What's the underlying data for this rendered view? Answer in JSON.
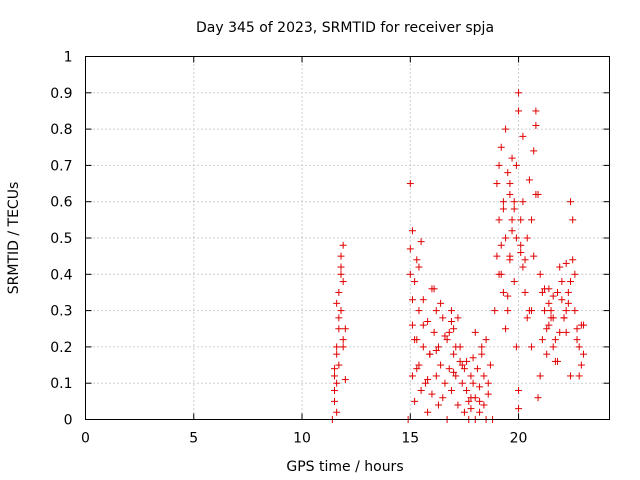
{
  "chart_data": {
    "type": "scatter",
    "title": "Day 345 of 2023, SRMTID for receiver spja",
    "xlabel": "GPS time / hours",
    "ylabel": "SRMTID / TECUs",
    "xlim": [
      0,
      24.2
    ],
    "ylim": [
      0,
      1
    ],
    "xticks": [
      0,
      5,
      10,
      15,
      20
    ],
    "xtick_labels": [
      "0",
      "5",
      "10",
      "15",
      "20"
    ],
    "yticks": [
      0,
      0.1,
      0.2,
      0.3,
      0.4,
      0.5,
      0.6,
      0.7,
      0.8,
      0.9,
      1
    ],
    "ytick_labels": [
      "0",
      "0.1",
      "0.2",
      "0.3",
      "0.4",
      "0.5",
      "0.6",
      "0.7",
      "0.8",
      "0.9",
      "1"
    ],
    "grid": true,
    "marker": "+",
    "color": "#e00000",
    "series": [
      {
        "name": "spja",
        "x": [
          11.4,
          11.5,
          11.5,
          11.6,
          11.6,
          11.6,
          11.7,
          11.7,
          11.7,
          11.8,
          11.8,
          11.8,
          11.9,
          11.9,
          11.9,
          12.0,
          12.0,
          11.5,
          11.6,
          11.7,
          11.8,
          11.9,
          11.5,
          11.6,
          14.9,
          15.0,
          15.0,
          15.1,
          15.1,
          15.2,
          15.2,
          15.3,
          15.3,
          15.4,
          15.4,
          15.5,
          15.5,
          15.6,
          15.6,
          15.7,
          15.8,
          15.8,
          15.9,
          16.0,
          16.0,
          16.1,
          16.2,
          16.2,
          16.3,
          16.3,
          16.4,
          16.5,
          16.5,
          16.6,
          16.7,
          16.7,
          16.8,
          16.9,
          16.9,
          17.0,
          17.0,
          17.1,
          17.2,
          17.2,
          17.3,
          17.3,
          17.4,
          17.5,
          17.5,
          17.6,
          17.7,
          17.7,
          17.8,
          17.8,
          17.9,
          18.0,
          18.0,
          18.1,
          18.2,
          18.2,
          18.3,
          18.4,
          18.4,
          18.5,
          18.6,
          18.7,
          18.8,
          15.0,
          15.1,
          15.2,
          15.3,
          15.6,
          15.9,
          16.4,
          16.8,
          17.1,
          17.6,
          18.0,
          18.3,
          18.6,
          15.1,
          15.4,
          15.8,
          16.2,
          16.6,
          17.0,
          17.4,
          17.8,
          18.2,
          18.5,
          16.1,
          16.9,
          17.9,
          18.9,
          19.0,
          19.0,
          19.1,
          19.1,
          19.2,
          19.2,
          19.3,
          19.3,
          19.4,
          19.4,
          19.5,
          19.5,
          19.6,
          19.6,
          19.7,
          19.7,
          19.8,
          19.8,
          19.9,
          19.9,
          20.0,
          20.0,
          20.1,
          20.1,
          20.2,
          20.2,
          20.3,
          20.4,
          20.5,
          20.6,
          20.7,
          20.8,
          20.9,
          21.0,
          21.1,
          21.2,
          21.3,
          21.4,
          21.5,
          21.6,
          21.7,
          21.8,
          21.9,
          22.0,
          22.1,
          22.2,
          22.3,
          22.4,
          22.5,
          22.6,
          22.7,
          22.8,
          22.9,
          23.0,
          19.2,
          19.4,
          19.6,
          19.8,
          20.0,
          20.2,
          20.4,
          20.6,
          20.8,
          21.0,
          21.2,
          21.4,
          21.6,
          21.8,
          22.0,
          22.2,
          22.4,
          22.6,
          22.8,
          23.0,
          19.5,
          19.9,
          20.3,
          20.7,
          21.1,
          21.5,
          21.9,
          22.3,
          22.7,
          19.3,
          19.7,
          20.1,
          20.5,
          20.9,
          21.3,
          21.7,
          22.1,
          22.5,
          22.9,
          19.1,
          20.0,
          20.8,
          21.6,
          22.4,
          19.6,
          20.6,
          21.4,
          22.2
        ],
        "y": [
          0.0,
          0.12,
          0.05,
          0.2,
          0.1,
          0.02,
          0.25,
          0.15,
          0.35,
          0.45,
          0.3,
          0.4,
          0.48,
          0.2,
          0.38,
          0.11,
          0.25,
          0.08,
          0.18,
          0.28,
          0.42,
          0.22,
          0.14,
          0.32,
          0.0,
          0.65,
          0.47,
          0.26,
          0.12,
          0.38,
          0.05,
          0.22,
          0.44,
          0.15,
          0.3,
          0.49,
          0.08,
          0.2,
          0.33,
          0.1,
          0.27,
          0.02,
          0.18,
          0.36,
          0.07,
          0.24,
          0.12,
          0.3,
          0.04,
          0.2,
          0.15,
          0.28,
          0.06,
          0.1,
          0.22,
          0.0,
          0.14,
          0.3,
          0.08,
          0.18,
          0.25,
          0.12,
          0.28,
          0.04,
          0.16,
          0.2,
          0.1,
          0.02,
          0.14,
          0.08,
          0.0,
          0.05,
          0.12,
          0.03,
          0.1,
          0.0,
          0.06,
          0.14,
          0.02,
          0.09,
          0.18,
          0.04,
          0.12,
          0.0,
          0.07,
          0.15,
          0.0,
          0.4,
          0.33,
          0.22,
          0.14,
          0.26,
          0.18,
          0.32,
          0.24,
          0.2,
          0.16,
          0.24,
          0.2,
          0.1,
          0.52,
          0.42,
          0.11,
          0.19,
          0.23,
          0.13,
          0.15,
          0.06,
          0.05,
          0.22,
          0.36,
          0.27,
          0.17,
          0.3,
          0.65,
          0.45,
          0.7,
          0.55,
          0.4,
          0.75,
          0.6,
          0.35,
          0.8,
          0.5,
          0.68,
          0.3,
          0.62,
          0.45,
          0.72,
          0.55,
          0.38,
          0.6,
          0.5,
          0.7,
          0.9,
          0.85,
          0.55,
          0.48,
          0.6,
          0.42,
          0.35,
          0.5,
          0.3,
          0.55,
          0.45,
          0.85,
          0.62,
          0.4,
          0.35,
          0.3,
          0.25,
          0.32,
          0.3,
          0.28,
          0.22,
          0.35,
          0.42,
          0.38,
          0.28,
          0.3,
          0.35,
          0.6,
          0.55,
          0.4,
          0.25,
          0.2,
          0.15,
          0.18,
          0.48,
          0.25,
          0.65,
          0.58,
          0.08,
          0.78,
          0.28,
          0.2,
          0.62,
          0.12,
          0.36,
          0.26,
          0.2,
          0.16,
          0.33,
          0.43,
          0.38,
          0.3,
          0.12,
          0.26,
          0.34,
          0.2,
          0.44,
          0.74,
          0.22,
          0.28,
          0.24,
          0.32,
          0.22,
          0.58,
          0.52,
          0.46,
          0.66,
          0.06,
          0.18,
          0.16,
          0.28,
          0.44,
          0.26,
          0.4,
          0.03,
          0.81,
          0.34,
          0.12,
          0.44,
          0.3,
          0.36,
          0.24
        ]
      }
    ]
  }
}
